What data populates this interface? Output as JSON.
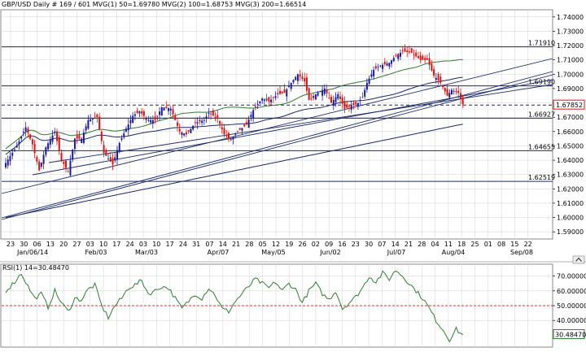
{
  "header": {
    "symbol": "GBP/USD",
    "timeframe": "Daily",
    "bars": "# 169 / 601",
    "mvg1": "MVG(1) 50=1.69780",
    "mvg2": "MVG(2) 100=1.68753",
    "mvg3": "MVG(3) 200=1.66514"
  },
  "colors": {
    "up_candle": "#1a1a9e",
    "down_candle": "#d01818",
    "ma": "#1a2a6c",
    "level": "#1a2a6c",
    "rsi": "#2e7d32",
    "rsi_mid": "#e03030",
    "price_box": "#d01818",
    "grid": "#d9d9d9"
  },
  "icons": {
    "collapse": "chevron-icon"
  },
  "chart_data": [
    {
      "type": "candlestick",
      "ylim": [
        1.585,
        1.745
      ],
      "y_ticks": [
        "1.74000",
        "1.73000",
        "1.72000",
        "1.71000",
        "1.70000",
        "1.69000",
        "1.68000",
        "1.67000",
        "1.66000",
        "1.65000",
        "1.64000",
        "1.63000",
        "1.62000",
        "1.61000",
        "1.60000",
        "1.59000"
      ],
      "x_ticks": [
        "23",
        "30",
        "06",
        "13",
        "20",
        "27",
        "03",
        "10",
        "17",
        "24",
        "03",
        "10",
        "17",
        "24",
        "31",
        "07",
        "14",
        "21",
        "28",
        "05",
        "12",
        "19",
        "26",
        "02",
        "09",
        "16",
        "23",
        "30",
        "07",
        "14",
        "21",
        "28",
        "04",
        "11",
        "18",
        "25",
        "01",
        "08",
        "15",
        "22"
      ],
      "month_labels": [
        "Jan/06/14",
        "Feb/03",
        "Mar/03",
        "Apr/07",
        "May/05",
        "Jun/02",
        "Jul/07",
        "Aug/04",
        "Sep/08"
      ],
      "levels": [
        {
          "value": 1.7191,
          "label": "1.71910",
          "style": "solid"
        },
        {
          "value": 1.6919,
          "label": "1.69190",
          "style": "solid"
        },
        {
          "value": 1.6785,
          "label": "",
          "style": "dashed"
        },
        {
          "value": 1.6693,
          "label": "1.66927",
          "style": "solid"
        },
        {
          "value": 1.6466,
          "label": "1.64655",
          "style": "solid"
        },
        {
          "value": 1.6252,
          "label": "1.62519",
          "style": "solid"
        }
      ],
      "current_price": "1.67852",
      "anchors": [
        [
          0,
          1.638
        ],
        [
          5,
          1.65
        ],
        [
          9,
          1.663
        ],
        [
          12,
          1.651
        ],
        [
          15,
          1.633
        ],
        [
          18,
          1.649
        ],
        [
          22,
          1.66
        ],
        [
          25,
          1.64
        ],
        [
          28,
          1.632
        ],
        [
          31,
          1.655
        ],
        [
          34,
          1.655
        ],
        [
          37,
          1.668
        ],
        [
          41,
          1.67
        ],
        [
          44,
          1.645
        ],
        [
          48,
          1.637
        ],
        [
          51,
          1.652
        ],
        [
          54,
          1.662
        ],
        [
          57,
          1.671
        ],
        [
          60,
          1.674
        ],
        [
          64,
          1.668
        ],
        [
          67,
          1.668
        ],
        [
          70,
          1.677
        ],
        [
          74,
          1.676
        ],
        [
          78,
          1.66
        ],
        [
          81,
          1.658
        ],
        [
          85,
          1.666
        ],
        [
          89,
          1.668
        ],
        [
          91,
          1.673
        ],
        [
          95,
          1.669
        ],
        [
          98,
          1.658
        ],
        [
          101,
          1.654
        ],
        [
          104,
          1.66
        ],
        [
          108,
          1.665
        ],
        [
          111,
          1.675
        ],
        [
          115,
          1.683
        ],
        [
          118,
          1.681
        ],
        [
          122,
          1.686
        ],
        [
          125,
          1.687
        ],
        [
          128,
          1.694
        ],
        [
          131,
          1.7
        ],
        [
          134,
          1.695
        ],
        [
          136,
          1.682
        ],
        [
          139,
          1.686
        ],
        [
          143,
          1.69
        ],
        [
          146,
          1.68
        ],
        [
          149,
          1.686
        ],
        [
          152,
          1.676
        ],
        [
          155,
          1.678
        ],
        [
          158,
          1.68
        ],
        [
          160,
          1.684
        ],
        [
          162,
          1.694
        ],
        [
          165,
          1.703
        ],
        [
          168,
          1.706
        ],
        [
          172,
          1.708
        ],
        [
          175,
          1.713
        ],
        [
          178,
          1.716
        ],
        [
          182,
          1.715
        ],
        [
          186,
          1.71
        ],
        [
          189,
          1.71
        ],
        [
          192,
          1.699
        ],
        [
          195,
          1.694
        ],
        [
          198,
          1.685
        ],
        [
          200,
          1.689
        ],
        [
          203,
          1.687
        ],
        [
          205,
          1.679
        ]
      ],
      "moving_averages": [
        {
          "name": "MVG(1) 50",
          "value": "1.69780"
        },
        {
          "name": "MVG(2) 100",
          "value": "1.68753"
        },
        {
          "name": "MVG(3) 200",
          "value": "1.66514"
        }
      ]
    },
    {
      "type": "line",
      "title": "RSI(1) 14=30.48470",
      "ylim": [
        22,
        78
      ],
      "y_ticks": [
        "70.00000",
        "60.00000",
        "50.00000",
        "40.00000"
      ],
      "reference_line": 50,
      "current_value": "30.48470",
      "anchors": [
        [
          0,
          60
        ],
        [
          4,
          66
        ],
        [
          7,
          72
        ],
        [
          10,
          63
        ],
        [
          13,
          55
        ],
        [
          16,
          58
        ],
        [
          19,
          49
        ],
        [
          22,
          60
        ],
        [
          25,
          52
        ],
        [
          28,
          46
        ],
        [
          31,
          55
        ],
        [
          34,
          54
        ],
        [
          37,
          61
        ],
        [
          40,
          64
        ],
        [
          43,
          50
        ],
        [
          46,
          42
        ],
        [
          49,
          50
        ],
        [
          52,
          55
        ],
        [
          55,
          62
        ],
        [
          58,
          64
        ],
        [
          61,
          67
        ],
        [
          64,
          58
        ],
        [
          67,
          60
        ],
        [
          70,
          63
        ],
        [
          73,
          62
        ],
        [
          76,
          55
        ],
        [
          79,
          48
        ],
        [
          82,
          53
        ],
        [
          85,
          58
        ],
        [
          88,
          55
        ],
        [
          91,
          62
        ],
        [
          94,
          57
        ],
        [
          97,
          48
        ],
        [
          100,
          46
        ],
        [
          103,
          53
        ],
        [
          106,
          58
        ],
        [
          109,
          63
        ],
        [
          112,
          68
        ],
        [
          115,
          65
        ],
        [
          118,
          62
        ],
        [
          121,
          66
        ],
        [
          124,
          60
        ],
        [
          127,
          65
        ],
        [
          130,
          61
        ],
        [
          133,
          52
        ],
        [
          136,
          60
        ],
        [
          139,
          65
        ],
        [
          142,
          58
        ],
        [
          145,
          54
        ],
        [
          148,
          60
        ],
        [
          151,
          48
        ],
        [
          154,
          52
        ],
        [
          157,
          56
        ],
        [
          160,
          62
        ],
        [
          163,
          70
        ],
        [
          166,
          66
        ],
        [
          169,
          72
        ],
        [
          172,
          68
        ],
        [
          175,
          74
        ],
        [
          178,
          70
        ],
        [
          181,
          65
        ],
        [
          184,
          60
        ],
        [
          187,
          55
        ],
        [
          190,
          48
        ],
        [
          193,
          40
        ],
        [
          196,
          34
        ],
        [
          199,
          27
        ],
        [
          202,
          34
        ],
        [
          205,
          30
        ]
      ]
    }
  ]
}
